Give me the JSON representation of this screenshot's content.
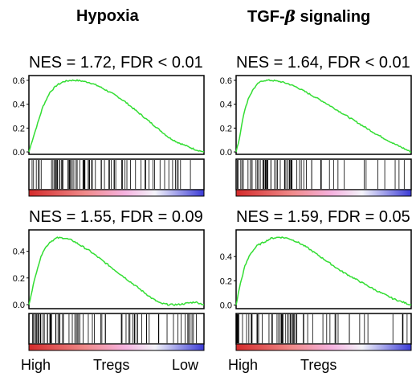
{
  "titles": {
    "col1": "Hypoxia",
    "col2_prefix": "TGF-",
    "col2_beta": "β",
    "col2_suffix": " signaling"
  },
  "x_axis_labels": {
    "high": "High",
    "mid": "Tregs",
    "low": "Low"
  },
  "colors": {
    "curve": "#33dd33",
    "frame": "#000000",
    "hits": "#000000",
    "high_end": "#d42b2b",
    "mid": "#f5b3e0",
    "low_end": "#3b3bd6"
  },
  "chart_data": [
    {
      "type": "line",
      "title": "NES = 1.72, FDR < 0.01",
      "ylim": [
        -0.02,
        0.64
      ],
      "yticks": [
        0.0,
        0.2,
        0.4,
        0.6
      ],
      "ytick_labels": [
        "0.0",
        "0.2",
        "0.4",
        "0.6"
      ],
      "x": [
        0,
        0.02,
        0.05,
        0.08,
        0.12,
        0.16,
        0.2,
        0.24,
        0.27,
        0.3,
        0.35,
        0.4,
        0.45,
        0.5,
        0.55,
        0.6,
        0.65,
        0.7,
        0.75,
        0.8,
        0.85,
        0.9,
        0.95,
        1.0
      ],
      "y": [
        0.0,
        0.1,
        0.24,
        0.38,
        0.5,
        0.56,
        0.59,
        0.6,
        0.6,
        0.595,
        0.58,
        0.55,
        0.51,
        0.47,
        0.42,
        0.36,
        0.3,
        0.24,
        0.18,
        0.12,
        0.08,
        0.05,
        0.02,
        0.0
      ],
      "hits_density": [
        [
          0,
          0.35,
          0.85
        ],
        [
          0.35,
          0.7,
          0.45
        ],
        [
          0.7,
          1.0,
          0.25
        ]
      ]
    },
    {
      "type": "line",
      "title": "NES = 1.64, FDR < 0.01",
      "ylim": [
        -0.02,
        0.64
      ],
      "yticks": [
        0.0,
        0.2,
        0.4,
        0.6
      ],
      "ytick_labels": [
        "0.0",
        "0.2",
        "0.4",
        "0.6"
      ],
      "x": [
        0,
        0.02,
        0.04,
        0.07,
        0.1,
        0.13,
        0.16,
        0.2,
        0.25,
        0.3,
        0.35,
        0.4,
        0.45,
        0.5,
        0.6,
        0.7,
        0.8,
        0.9,
        1.0
      ],
      "y": [
        0.0,
        0.12,
        0.3,
        0.45,
        0.53,
        0.58,
        0.6,
        0.6,
        0.59,
        0.57,
        0.54,
        0.5,
        0.46,
        0.42,
        0.33,
        0.24,
        0.15,
        0.07,
        0.0
      ],
      "hits_density": [
        [
          0,
          0.4,
          0.8
        ],
        [
          0.4,
          0.75,
          0.25
        ],
        [
          0.75,
          1.0,
          0.15
        ]
      ]
    },
    {
      "type": "line",
      "title": "NES = 1.55, FDR = 0.09",
      "ylim": [
        -0.03,
        0.56
      ],
      "yticks": [
        0.0,
        0.2,
        0.4
      ],
      "ytick_labels": [
        "0.0",
        "0.2",
        "0.4"
      ],
      "x": [
        0,
        0.02,
        0.05,
        0.08,
        0.12,
        0.16,
        0.2,
        0.25,
        0.3,
        0.35,
        0.4,
        0.45,
        0.5,
        0.55,
        0.6,
        0.65,
        0.7,
        0.75,
        0.8,
        0.85,
        0.9,
        0.95,
        1.0
      ],
      "y": [
        0.0,
        0.12,
        0.28,
        0.4,
        0.47,
        0.5,
        0.5,
        0.48,
        0.44,
        0.4,
        0.35,
        0.3,
        0.25,
        0.2,
        0.15,
        0.1,
        0.05,
        0.01,
        0.0,
        0.0,
        0.01,
        0.02,
        0.0
      ],
      "hits_density": [
        [
          0,
          0.3,
          0.85
        ],
        [
          0.3,
          0.7,
          0.4
        ],
        [
          0.7,
          1.0,
          0.3
        ]
      ]
    },
    {
      "type": "line",
      "title": "NES = 1.59, FDR = 0.05",
      "ylim": [
        -0.03,
        0.62
      ],
      "yticks": [
        0.0,
        0.2,
        0.4
      ],
      "ytick_labels": [
        "0.0",
        "0.2",
        "0.4"
      ],
      "x": [
        0,
        0.02,
        0.05,
        0.08,
        0.12,
        0.16,
        0.2,
        0.25,
        0.3,
        0.35,
        0.4,
        0.45,
        0.5,
        0.55,
        0.6,
        0.7,
        0.8,
        0.9,
        1.0
      ],
      "y": [
        0.0,
        0.15,
        0.32,
        0.42,
        0.49,
        0.52,
        0.55,
        0.56,
        0.55,
        0.52,
        0.48,
        0.43,
        0.38,
        0.33,
        0.28,
        0.2,
        0.12,
        0.05,
        0.0
      ],
      "hits_density": [
        [
          0,
          0.35,
          0.8
        ],
        [
          0.35,
          0.75,
          0.25
        ],
        [
          0.75,
          1.0,
          0.15
        ]
      ]
    }
  ]
}
